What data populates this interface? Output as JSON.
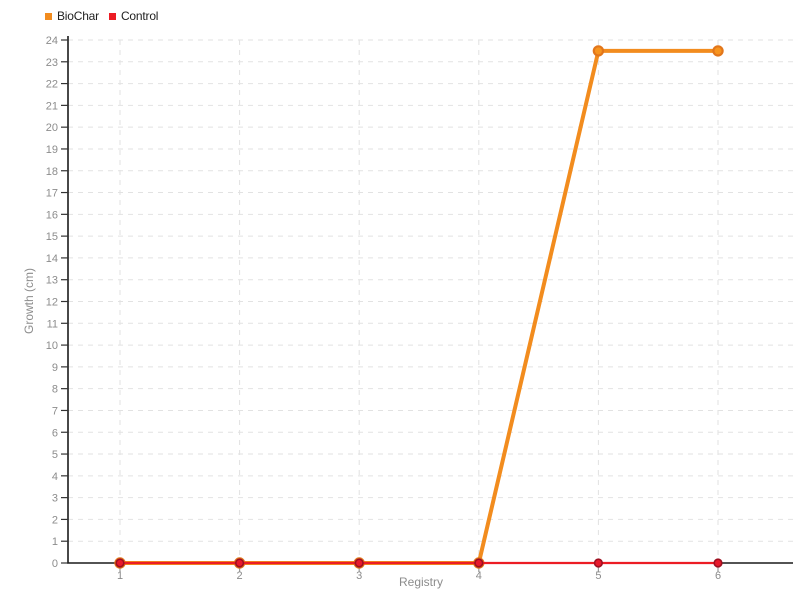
{
  "chart_data": {
    "type": "line",
    "title": "",
    "xlabel": "Registry",
    "ylabel": "Growth (cm)",
    "x": [
      1,
      2,
      3,
      4,
      5,
      6
    ],
    "ylim": [
      0,
      24
    ],
    "ytick_step": 1,
    "grid": "dashed-horizontal-and-vertical",
    "legend_position": "top-left",
    "series": [
      {
        "name": "BioChar",
        "values": [
          0,
          0,
          0,
          0,
          23.5,
          23.5
        ],
        "color": "#F28C1E",
        "marker_fill": "#F7941E",
        "marker_stroke": "#E2761B",
        "line_width": 4,
        "marker_radius": 4.6,
        "marker_stroke_width": 2.2
      },
      {
        "name": "Control",
        "values": [
          0,
          0,
          0,
          0,
          0,
          0
        ],
        "color": "#EC1C24",
        "marker_fill": "#E8192C",
        "marker_stroke": "#9E1020",
        "line_width": 2.2,
        "marker_radius": 3.8,
        "marker_stroke_width": 1.6
      }
    ]
  },
  "styles": {
    "background": "#FFFFFF",
    "grid_color": "#E2E2E2",
    "axis_color": "#1A1A1A",
    "y_tick_color": "#333333",
    "x_tick_color": "#999999",
    "tick_label_color": "#8C8C8C",
    "axis_label_color": "#8C8C8C",
    "legend_text_color": "#222222"
  }
}
